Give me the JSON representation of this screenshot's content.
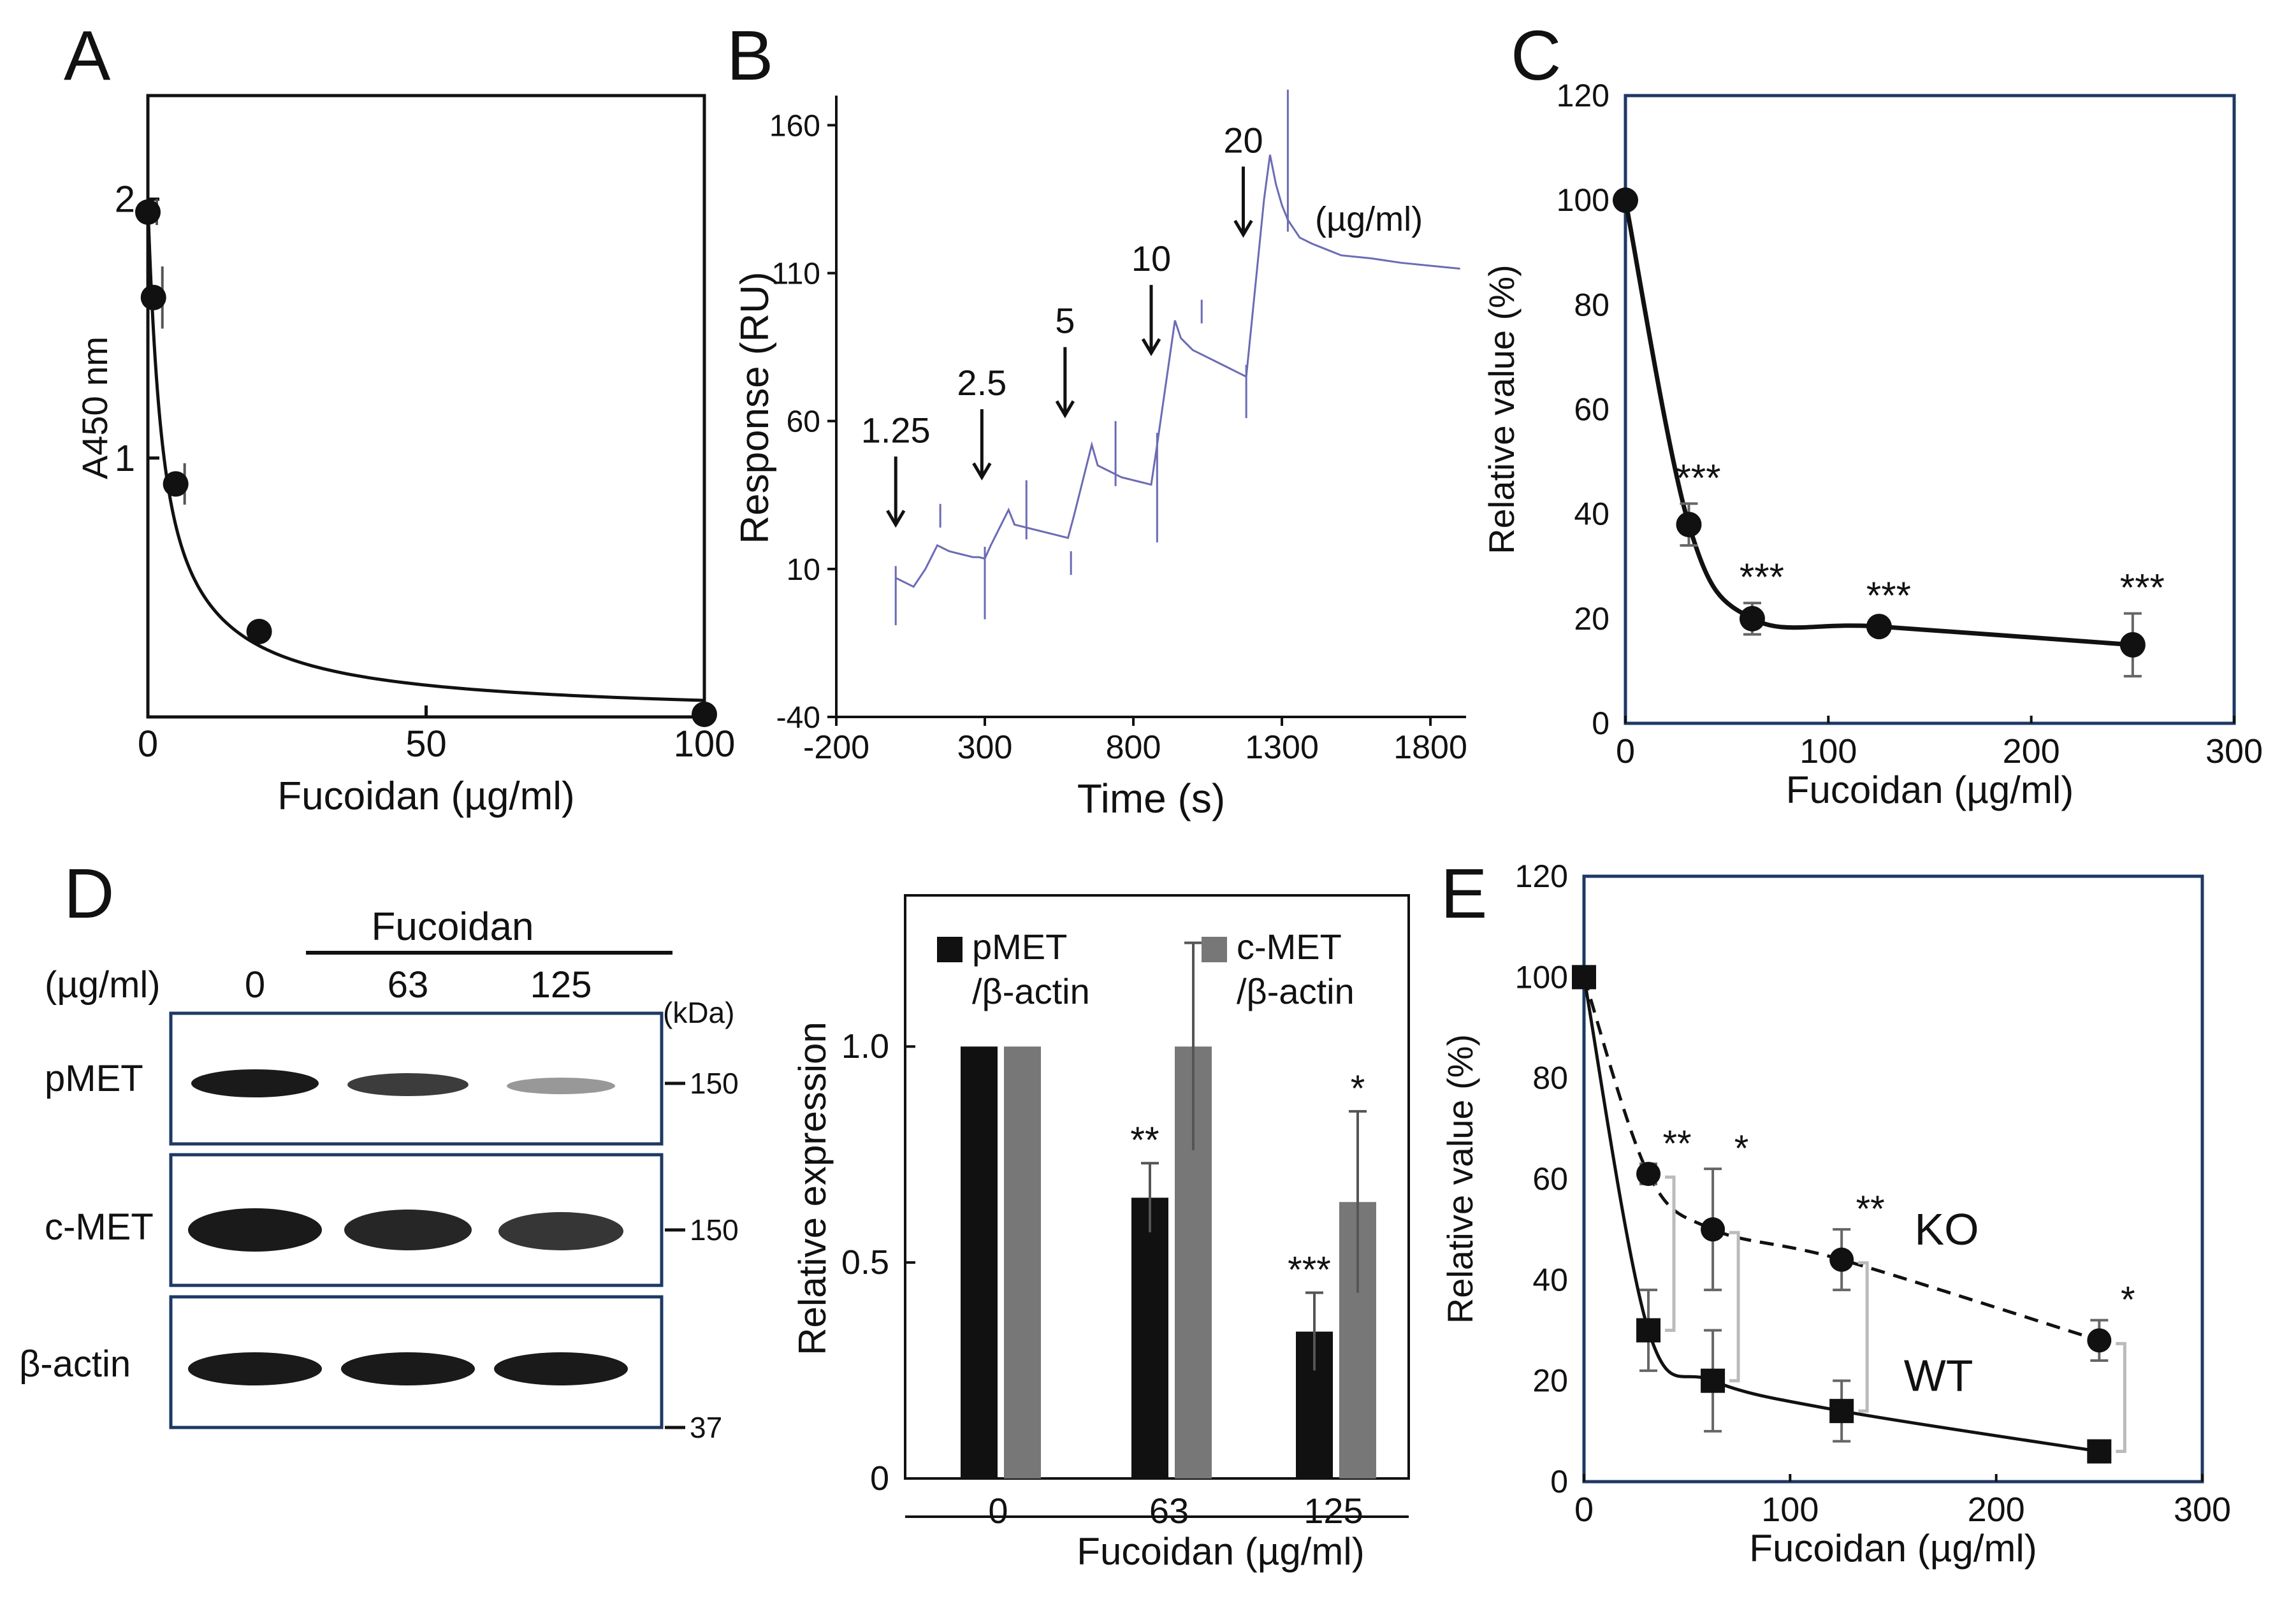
{
  "panel_labels": {
    "a": "A",
    "b": "B",
    "c": "C",
    "d": "D",
    "e": "E"
  },
  "colors": {
    "ink": "#111111",
    "frame_blue": "#1f3864",
    "sensorgram": "#6b6bb5",
    "grey_bar": "#777777",
    "bracket": "#bbbbbb"
  },
  "chart_data": [
    {
      "panel": "A",
      "type": "scatter",
      "title": "",
      "xlabel": "Fucoidan (µg/ml)",
      "ylabel": "A450 nm",
      "xlim": [
        0,
        100
      ],
      "ylim": [
        0,
        2.4
      ],
      "xticks": [
        0,
        50,
        100
      ],
      "yticks": [
        1,
        2
      ],
      "series": [
        {
          "name": "fit",
          "x": [
            0,
            1,
            5,
            20,
            100
          ],
          "y": [
            1.95,
            1.62,
            0.9,
            0.33,
            0.01
          ],
          "err": [
            0.05,
            0.12,
            0.08,
            0.02,
            0.01
          ]
        }
      ]
    },
    {
      "panel": "B",
      "type": "line",
      "title": "",
      "xlabel": "Time (s)",
      "ylabel": "Response (RU)",
      "xlim": [
        -200,
        1920
      ],
      "ylim": [
        -40,
        170
      ],
      "xticks": [
        -200,
        300,
        800,
        1300,
        1800
      ],
      "yticks": [
        -40,
        10,
        60,
        110,
        160
      ],
      "series": [
        {
          "name": "sensorgram",
          "x": [
            0,
            20,
            40,
            60,
            80,
            100,
            120,
            140,
            160,
            180,
            200,
            220,
            240,
            260,
            280,
            300,
            320,
            340,
            360,
            380,
            400,
            420,
            440,
            460,
            480,
            500,
            520,
            540,
            560,
            580,
            600,
            620,
            640,
            660,
            680,
            700,
            720,
            740,
            760,
            780,
            800,
            820,
            840,
            860,
            880,
            900,
            920,
            940,
            960,
            980,
            1000,
            1020,
            1040,
            1060,
            1080,
            1100,
            1120,
            1140,
            1160,
            1180,
            1200,
            1220,
            1240,
            1260,
            1280,
            1300,
            1320,
            1340,
            1360,
            1400,
            1450,
            1500,
            1600,
            1700,
            1800,
            1900
          ],
          "y": [
            7,
            6,
            5,
            4,
            7,
            10,
            14,
            18,
            17,
            16,
            15.5,
            15,
            14.5,
            14,
            14,
            13.5,
            18,
            22,
            26,
            30,
            25,
            24.5,
            24,
            23.5,
            23,
            22.5,
            22,
            21.5,
            21,
            20.5,
            28,
            36,
            44,
            52,
            45,
            44,
            43,
            42,
            41,
            40.5,
            40,
            39.5,
            39,
            38.5,
            52,
            66,
            80,
            94,
            88,
            86,
            84,
            83,
            82,
            81,
            80,
            79,
            78,
            77,
            76,
            75,
            95,
            115,
            135,
            150,
            140,
            133,
            128,
            125,
            122,
            120,
            118,
            116,
            115,
            113.5,
            112.5,
            111.5
          ]
        },
        {
          "name": "injections",
          "x": [
            0,
            150,
            300,
            440,
            590,
            740,
            880,
            1030,
            1180,
            1320
          ],
          "y": [
            -5,
            28,
            -3,
            36,
            12,
            56,
            23,
            97,
            65,
            168
          ]
        }
      ],
      "annotations": [
        {
          "label": "1.25",
          "x": 0
        },
        {
          "label": "2.5",
          "x": 290
        },
        {
          "label": "5",
          "x": 570
        },
        {
          "label": "10",
          "x": 860
        },
        {
          "label": "20",
          "x": 1170
        }
      ],
      "unit_label": "(µg/ml)"
    },
    {
      "panel": "C",
      "type": "scatter",
      "title": "",
      "xlabel": "Fucoidan (µg/ml)",
      "ylabel": "Relative value (%)",
      "xlim": [
        0,
        300
      ],
      "ylim": [
        0,
        120
      ],
      "xticks": [
        0,
        100,
        200,
        300
      ],
      "yticks": [
        0,
        20,
        40,
        60,
        80,
        100,
        120
      ],
      "series": [
        {
          "name": "fit",
          "x": [
            0,
            31.25,
            62.5,
            125,
            250
          ],
          "y": [
            100,
            38,
            20,
            18.5,
            15
          ],
          "err": [
            0,
            4,
            3,
            1,
            6
          ]
        }
      ],
      "significance": [
        "",
        "***",
        "***",
        "***",
        "***"
      ]
    },
    {
      "panel": "D",
      "type": "bar",
      "title": "",
      "xlabel": "Fucoidan (µg/ml)",
      "ylabel": "Relative expression",
      "categories": [
        "0",
        "63",
        "125"
      ],
      "ylim": [
        0,
        1.35
      ],
      "yticks": [
        0,
        0.5,
        1.0
      ],
      "ytick_labels": [
        "0",
        "0.5",
        "1.0"
      ],
      "series": [
        {
          "name": "pMET /β-actin",
          "legend_lines": [
            "pMET",
            "/β-actin"
          ],
          "values": [
            1.0,
            0.65,
            0.34
          ],
          "err": [
            0,
            0.08,
            0.09
          ],
          "significance": [
            "",
            "**",
            "***"
          ]
        },
        {
          "name": "c-MET /β-actin",
          "legend_lines": [
            "c-MET",
            "/β-actin"
          ],
          "values": [
            1.0,
            1.0,
            0.64
          ],
          "err": [
            0,
            0.24,
            0.21
          ],
          "significance": [
            "",
            "",
            "*"
          ]
        }
      ]
    },
    {
      "panel": "E",
      "type": "scatter",
      "title": "",
      "xlabel": "Fucoidan (µg/ml)",
      "ylabel": "Relative value (%)",
      "xlim": [
        0,
        300
      ],
      "ylim": [
        0,
        120
      ],
      "xticks": [
        0,
        100,
        200,
        300
      ],
      "yticks": [
        0,
        20,
        40,
        60,
        80,
        100,
        120
      ],
      "series": [
        {
          "name": "KO",
          "x": [
            0,
            31.25,
            62.5,
            125,
            250
          ],
          "y": [
            100,
            61,
            50,
            44,
            28
          ],
          "err": [
            0,
            2,
            12,
            6,
            4
          ]
        },
        {
          "name": "WT",
          "x": [
            0,
            31.25,
            62.5,
            125,
            250
          ],
          "y": [
            100,
            30,
            20,
            14,
            6
          ],
          "err": [
            0,
            8,
            10,
            6,
            1
          ]
        }
      ],
      "significance": [
        "",
        "**",
        "*",
        "**",
        "*"
      ]
    }
  ],
  "blot": {
    "treatment_label": "Fucoidan",
    "unit_label": "(µg/ml)",
    "lanes": [
      "0",
      "63",
      "125"
    ],
    "kda_label": "(kDa)",
    "rows": [
      {
        "name": "pMET",
        "marker": "150",
        "intensity": [
          1.0,
          0.8,
          0.35
        ]
      },
      {
        "name": "c-MET",
        "marker": "150",
        "intensity": [
          1.0,
          0.95,
          0.9
        ]
      },
      {
        "name": "β-actin",
        "marker": "37",
        "intensity": [
          1.0,
          1.0,
          1.0
        ]
      }
    ]
  }
}
